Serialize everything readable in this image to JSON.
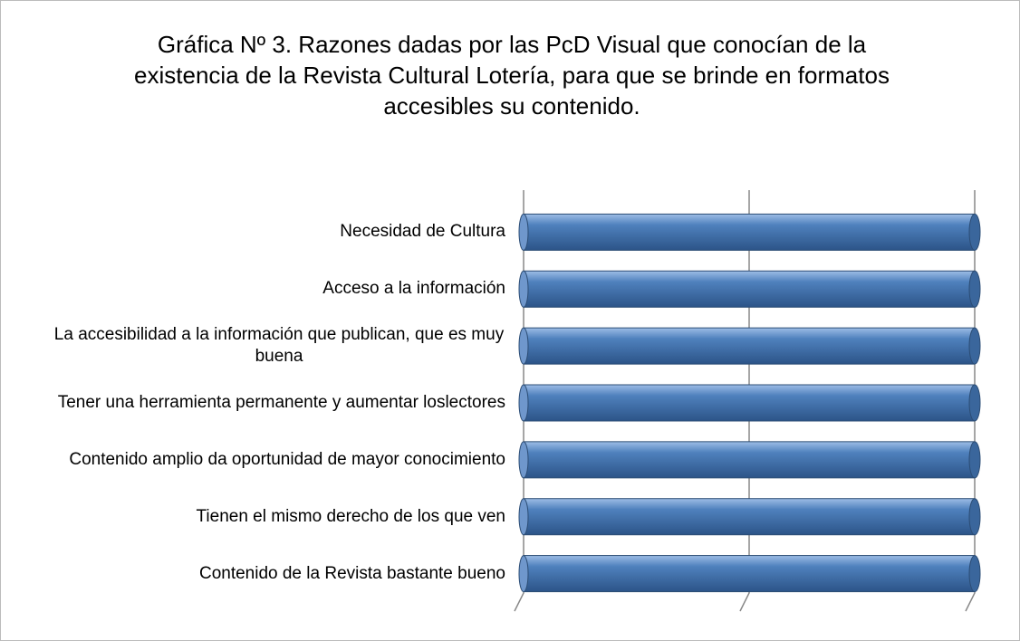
{
  "chart_data": {
    "type": "bar",
    "orientation": "horizontal",
    "title": "Gráfica Nº 3.  Razones dadas por las PcD Visual que conocían de la existencia de la Revista Cultural Lotería, para que se brinde en formatos accesibles  su contenido.",
    "categories": [
      "Necesidad de Cultura",
      "Acceso a la información",
      "La accesibilidad a la información que publican, que es muy buena",
      "Tener una herramienta permanente y aumentar loslectores",
      "Contenido amplio da oportunidad de mayor conocimiento",
      "Tienen el mismo derecho de los que ven",
      "Contenido de la Revista bastante bueno"
    ],
    "values": [
      1,
      1,
      1,
      1,
      1,
      1,
      1
    ],
    "color": "#4f81bd",
    "xlim": [
      0,
      1
    ],
    "xticks": [
      0,
      0.5,
      1
    ],
    "grid": true
  }
}
